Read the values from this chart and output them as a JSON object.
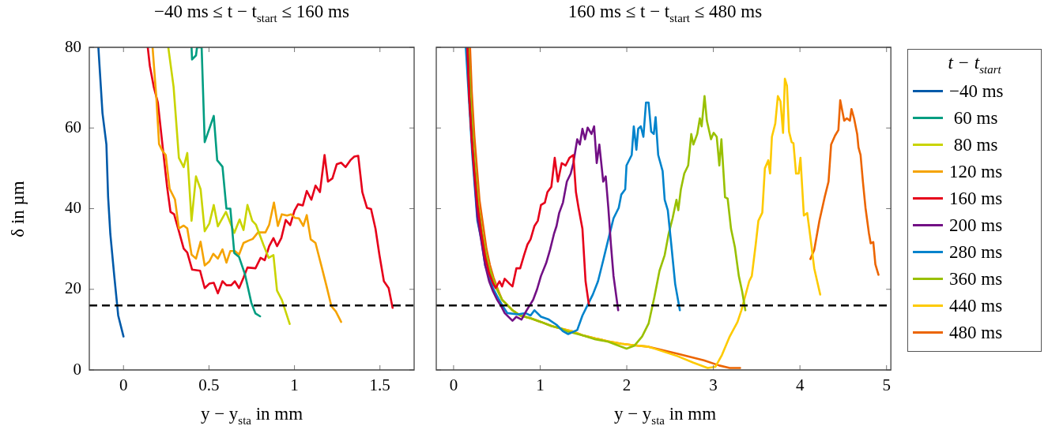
{
  "chart_data": [
    {
      "type": "line",
      "title": "−40 ms ≤ t − t$_{start}$ ≤ 160 ms",
      "xlabel": "y − y$_{sta}$ in mm",
      "ylabel": "δ in µm",
      "xlim": [
        -0.2,
        1.7
      ],
      "xticks": [
        0,
        0.5,
        1,
        1.5
      ],
      "ylim": [
        0,
        80
      ],
      "yticks": [
        0,
        20,
        40,
        60,
        80
      ],
      "legend": "right",
      "marker": "none",
      "line_style": "solid",
      "ref_lines": [
        {
          "axis": "y",
          "value": 16,
          "color": "#000000",
          "line_style": "dashed"
        }
      ],
      "series": [
        {
          "name": "−40 ms",
          "color": "#005aa9",
          "x": [
            -0.147,
            -0.123,
            -0.1,
            -0.09,
            -0.077,
            -0.054,
            -0.031,
            0
          ],
          "values": [
            80,
            63.7,
            55.9,
            42.9,
            33.7,
            23.3,
            13.5,
            8.3
          ]
        },
        {
          "name": " 60 ms",
          "color": "#009d81",
          "x": [
            0.398,
            0.401,
            0.424,
            0.43,
            0.457,
            0.475,
            0.528,
            0.548,
            0.579,
            0.602,
            0.625,
            0.648,
            0.676,
            0.71,
            0.748,
            0.772,
            0.799
          ],
          "values": [
            80,
            77,
            78,
            80,
            80,
            56.5,
            63,
            52,
            50.4,
            40,
            40,
            29,
            28,
            23.8,
            16.6,
            14,
            13.3
          ]
        },
        {
          "name": " 80 ms",
          "color": "#c9d400",
          "x": [
            0.262,
            0.293,
            0.324,
            0.352,
            0.373,
            0.398,
            0.424,
            0.451,
            0.475,
            0.502,
            0.528,
            0.552,
            0.599,
            0.648,
            0.679,
            0.702,
            0.725,
            0.753,
            0.775,
            0.818,
            0.849,
            0.877,
            0.898,
            0.926,
            0.972
          ],
          "values": [
            80,
            70.2,
            52.6,
            50.3,
            53.8,
            37,
            48,
            44.8,
            34.4,
            36.3,
            40.9,
            35.6,
            39.2,
            34,
            37.3,
            34.7,
            40.9,
            37,
            36,
            31.1,
            27.8,
            28.5,
            19.7,
            17.4,
            11.4
          ]
        },
        {
          "name": "120 ms",
          "color": "#f5a300",
          "x": [
            0.17,
            0.193,
            0.208,
            0.228,
            0.247,
            0.27,
            0.301,
            0.324,
            0.352,
            0.373,
            0.398,
            0.424,
            0.451,
            0.475,
            0.502,
            0.525,
            0.552,
            0.579,
            0.602,
            0.625,
            0.651,
            0.676,
            0.702,
            0.733,
            0.756,
            0.787,
            0.83,
            0.852,
            0.88,
            0.903,
            0.926,
            0.957,
            0.98,
            1.003,
            1.026,
            1.052,
            1.072,
            1.095,
            1.123,
            1.157,
            1.188,
            1.216,
            1.242,
            1.273
          ],
          "values": [
            80,
            67,
            56,
            54.3,
            53.3,
            44.9,
            42.3,
            35.1,
            35.8,
            35.1,
            28.6,
            27.6,
            31.8,
            25.9,
            26.9,
            28.8,
            27.6,
            29.9,
            26.6,
            29.5,
            29.5,
            28.6,
            31.5,
            32.1,
            32.5,
            34.1,
            34.1,
            36,
            41.5,
            35.7,
            38.6,
            38.3,
            38.6,
            37.7,
            37.6,
            35.7,
            38.4,
            32.4,
            31.5,
            25.9,
            20.7,
            15.8,
            14.5,
            11.9
          ]
        },
        {
          "name": "160 ms",
          "color": "#e6001a",
          "x": [
            0.142,
            0.154,
            0.177,
            0.201,
            0.231,
            0.255,
            0.275,
            0.296,
            0.324,
            0.352,
            0.373,
            0.401,
            0.448,
            0.475,
            0.502,
            0.528,
            0.552,
            0.579,
            0.602,
            0.63,
            0.651,
            0.676,
            0.702,
            0.725,
            0.772,
            0.802,
            0.826,
            0.852,
            0.877,
            0.898,
            0.923,
            0.949,
            0.975,
            1.0,
            1.021,
            1.049,
            1.072,
            1.099,
            1.123,
            1.149,
            1.176,
            1.196,
            1.222,
            1.247,
            1.273,
            1.299,
            1.327,
            1.35,
            1.373,
            1.397,
            1.424,
            1.448,
            1.474,
            1.497,
            1.523,
            1.551,
            1.574
          ],
          "values": [
            80,
            75.4,
            70.2,
            66.3,
            54.6,
            45.4,
            39.2,
            38.6,
            34.4,
            30.1,
            29.1,
            24.9,
            24.6,
            20.3,
            21.4,
            21.6,
            19,
            22,
            21,
            21,
            22,
            20.3,
            22.9,
            25.4,
            25.2,
            27.8,
            27.2,
            30.7,
            32.7,
            30.7,
            32.7,
            37.2,
            35.9,
            39.5,
            41.1,
            40.8,
            44.4,
            42.2,
            45.7,
            44.1,
            53.3,
            46.7,
            47.5,
            51,
            51.4,
            50.3,
            52,
            52.9,
            53.1,
            44.1,
            40.2,
            39.9,
            35,
            28.5,
            22,
            20.3,
            15.4
          ]
        }
      ]
    },
    {
      "type": "line",
      "title": "160 ms ≤ t − t$_{start}$ ≤ 480 ms",
      "xlabel": "y − y$_{sta}$ in mm",
      "xlim": [
        -0.2,
        5.05
      ],
      "xticks": [
        0,
        1,
        2,
        3,
        4,
        5
      ],
      "ylim": [
        0,
        80
      ],
      "yticks": [
        0,
        20,
        40,
        60,
        80
      ],
      "tick_labels": "x",
      "legend": "right",
      "legend_title": "t − t$_{start}$",
      "marker": "none",
      "line_style": "solid",
      "ref_lines": [
        {
          "axis": "y",
          "value": 16,
          "color": "#000000",
          "line_style": "dashed"
        }
      ],
      "series": [
        {
          "name": "160 ms",
          "color": "#e6001a",
          "x": [
            0.16,
            0.18,
            0.21,
            0.24,
            0.275,
            0.32,
            0.365,
            0.41,
            0.455,
            0.485,
            0.53,
            0.56,
            0.59,
            0.65,
            0.68,
            0.725,
            0.769,
            0.814,
            0.853,
            0.889,
            0.934,
            0.973,
            1.009,
            1.054,
            1.084,
            1.129,
            1.168,
            1.204,
            1.249,
            1.294,
            1.338,
            1.383,
            1.413,
            1.443,
            1.488,
            1.524,
            1.563
          ],
          "values": [
            80,
            68,
            57,
            49,
            41,
            34,
            28,
            24,
            21.5,
            20.3,
            22,
            20.7,
            22.6,
            21.3,
            20.7,
            25.2,
            25.2,
            28.5,
            31.1,
            32.4,
            35.7,
            37,
            40.9,
            41.5,
            44.1,
            45.4,
            52.6,
            46.7,
            51.3,
            50.7,
            52.6,
            53.3,
            44.1,
            40.2,
            35,
            22,
            16.1
          ]
        },
        {
          "name": "200 ms",
          "color": "#721085",
          "x": [
            0.16,
            0.18,
            0.21,
            0.24,
            0.275,
            0.32,
            0.365,
            0.41,
            0.455,
            0.5,
            0.545,
            0.59,
            0.68,
            0.725,
            0.784,
            0.844,
            0.919,
            0.964,
            1.009,
            1.069,
            1.114,
            1.159,
            1.189,
            1.219,
            1.263,
            1.308,
            1.353,
            1.383,
            1.428,
            1.458,
            1.488,
            1.518,
            1.548,
            1.593,
            1.623,
            1.653,
            1.683,
            1.728,
            1.757,
            1.787,
            1.817,
            1.847,
            1.901
          ],
          "values": [
            80,
            68,
            57,
            48,
            38,
            32,
            26,
            22,
            19.5,
            17.5,
            16,
            14.1,
            12.2,
            13.2,
            12.5,
            14.8,
            17.4,
            20,
            23.3,
            26.5,
            29.8,
            33.7,
            35.7,
            38.9,
            41.5,
            46.7,
            48.7,
            51.3,
            57.2,
            55.9,
            59.8,
            57.2,
            60.1,
            58.5,
            60.4,
            51.3,
            55.9,
            46.7,
            48,
            40.2,
            31.1,
            23.3,
            14.8
          ]
        },
        {
          "name": "280 ms",
          "color": "#0083cc",
          "x": [
            0.141,
            0.156,
            0.216,
            0.275,
            0.32,
            0.365,
            0.41,
            0.455,
            0.5,
            0.56,
            0.62,
            0.74,
            0.829,
            0.889,
            0.934,
            1.009,
            1.099,
            1.189,
            1.263,
            1.323,
            1.428,
            1.488,
            1.548,
            1.608,
            1.668,
            1.728,
            1.787,
            1.847,
            1.907,
            1.937,
            1.982,
            1.997,
            2.057,
            2.081,
            2.111,
            2.132,
            2.162,
            2.192,
            2.222,
            2.252,
            2.282,
            2.312,
            2.333,
            2.363,
            2.414,
            2.438,
            2.474,
            2.514,
            2.559,
            2.613
          ],
          "values": [
            80,
            74.8,
            53.3,
            37,
            32.4,
            25.9,
            23.3,
            20.3,
            18.4,
            16.1,
            14.1,
            13.8,
            14.1,
            13.5,
            14.8,
            13.2,
            12.5,
            11.2,
            9.6,
            8.9,
            9.9,
            13.5,
            16.1,
            18.7,
            22,
            27.2,
            32.4,
            37.6,
            40.2,
            43.5,
            44.8,
            50.7,
            53.3,
            60.4,
            54.6,
            59.8,
            60.4,
            57.8,
            66.3,
            66.3,
            59.1,
            58.5,
            62.7,
            53.3,
            49.3,
            42.2,
            39.6,
            31.1,
            21.3,
            14.8
          ]
        },
        {
          "name": "360 ms",
          "color": "#99c000",
          "x": [
            0.17,
            0.2,
            0.23,
            0.26,
            0.29,
            0.33,
            0.37,
            0.41,
            0.455,
            0.5,
            0.56,
            0.62,
            0.68,
            0.77,
            0.89,
            1.01,
            1.13,
            1.25,
            1.308,
            1.488,
            1.638,
            1.787,
            1.907,
            1.997,
            2.087,
            2.177,
            2.252,
            2.318,
            2.378,
            2.438,
            2.483,
            2.529,
            2.574,
            2.595,
            2.625,
            2.664,
            2.709,
            2.745,
            2.769,
            2.814,
            2.844,
            2.865,
            2.898,
            2.925,
            2.973,
            3.003,
            3.039,
            3.069,
            3.093,
            3.135,
            3.165,
            3.204,
            3.249,
            3.294,
            3.333,
            3.369
          ],
          "values": [
            80,
            66,
            55,
            47,
            40,
            34,
            29,
            25.5,
            22.5,
            20,
            17.4,
            16.1,
            14.8,
            13.5,
            12.8,
            11.9,
            10.9,
            10.2,
            9.6,
            8.6,
            7.6,
            7,
            6,
            5.3,
            6,
            8.3,
            11.5,
            18,
            24.6,
            28.5,
            33.7,
            37.6,
            42.2,
            39.6,
            44.8,
            48.7,
            50.7,
            58.5,
            55.9,
            58.5,
            62.4,
            60.4,
            67.9,
            61.8,
            57.2,
            58.8,
            57.8,
            50.7,
            57.2,
            42.8,
            42.5,
            35,
            30.4,
            23.3,
            19.4,
            14.8
          ]
        },
        {
          "name": "440 ms",
          "color": "#fdca00",
          "x": [
            0.26,
            0.29,
            0.33,
            0.37,
            0.41,
            0.455,
            0.5,
            0.56,
            0.62,
            0.68,
            0.77,
            0.89,
            1.01,
            1.13,
            1.25,
            1.37,
            1.488,
            1.638,
            1.787,
            1.937,
            2.087,
            2.237,
            2.288,
            2.589,
            2.769,
            2.934,
            3.024,
            3.099,
            3.189,
            3.279,
            3.324,
            3.414,
            3.444,
            3.489,
            3.52,
            3.565,
            3.595,
            3.634,
            3.655,
            3.676,
            3.715,
            3.745,
            3.775,
            3.805,
            3.826,
            3.85,
            3.874,
            3.904,
            3.925,
            3.955,
            3.985,
            4.006,
            4.045,
            4.084,
            4.12,
            4.165,
            4.234
          ],
          "values": [
            47,
            40,
            34,
            29,
            25.5,
            22.5,
            20,
            17.4,
            16.1,
            14.8,
            13.5,
            12.8,
            11.9,
            10.9,
            10.2,
            9.6,
            8.6,
            7.8,
            7.1,
            6.5,
            6.1,
            5.8,
            5.5,
            3.4,
            1.8,
            0.5,
            0.8,
            3.7,
            8.3,
            11.9,
            14.8,
            22,
            23.3,
            31.1,
            37,
            39,
            50,
            52,
            48.7,
            57.8,
            61.1,
            67.9,
            66.6,
            58.8,
            72.2,
            70.5,
            59.1,
            56.5,
            56.2,
            48.7,
            48.7,
            52.6,
            38.3,
            38.9,
            33,
            25.2,
            18.7
          ]
        },
        {
          "name": "480 ms",
          "color": "#ec6500",
          "x": [
            0.19,
            0.21,
            0.24,
            0.27,
            0.3,
            0.34,
            0.38,
            0.42,
            0.46,
            0.51,
            0.56,
            0.62,
            0.68,
            0.77,
            0.89,
            1.01,
            1.13,
            1.25,
            1.37,
            1.488,
            1.638,
            1.787,
            1.937,
            2.087,
            2.237,
            2.589,
            2.889,
            3.069,
            3.189,
            3.309,
            3.7,
            4.12,
            4.165,
            4.225,
            4.285,
            4.33,
            4.36,
            4.405,
            4.444,
            4.465,
            4.511,
            4.541,
            4.577,
            4.595,
            4.625,
            4.661,
            4.676,
            4.7,
            4.727,
            4.757,
            4.796,
            4.817,
            4.847,
            4.871,
            4.907
          ],
          "values": [
            80,
            69,
            58,
            50,
            42,
            36,
            30,
            26,
            23,
            20,
            17.4,
            16.1,
            14.8,
            13.5,
            12.8,
            11.9,
            10.9,
            10.2,
            9.6,
            8.6,
            7.8,
            7.1,
            6.5,
            6.1,
            5.8,
            4,
            2.4,
            1.1,
            0.5,
            0.5,
            null,
            27.5,
            29.8,
            37,
            42.8,
            46.7,
            55.9,
            58.1,
            59.5,
            66.9,
            61.8,
            62.4,
            61.8,
            64.7,
            62.4,
            58.5,
            55.2,
            53.3,
            46.7,
            40.2,
            34,
            31.4,
            31.7,
            26.2,
            23.6
          ]
        }
      ]
    }
  ]
}
